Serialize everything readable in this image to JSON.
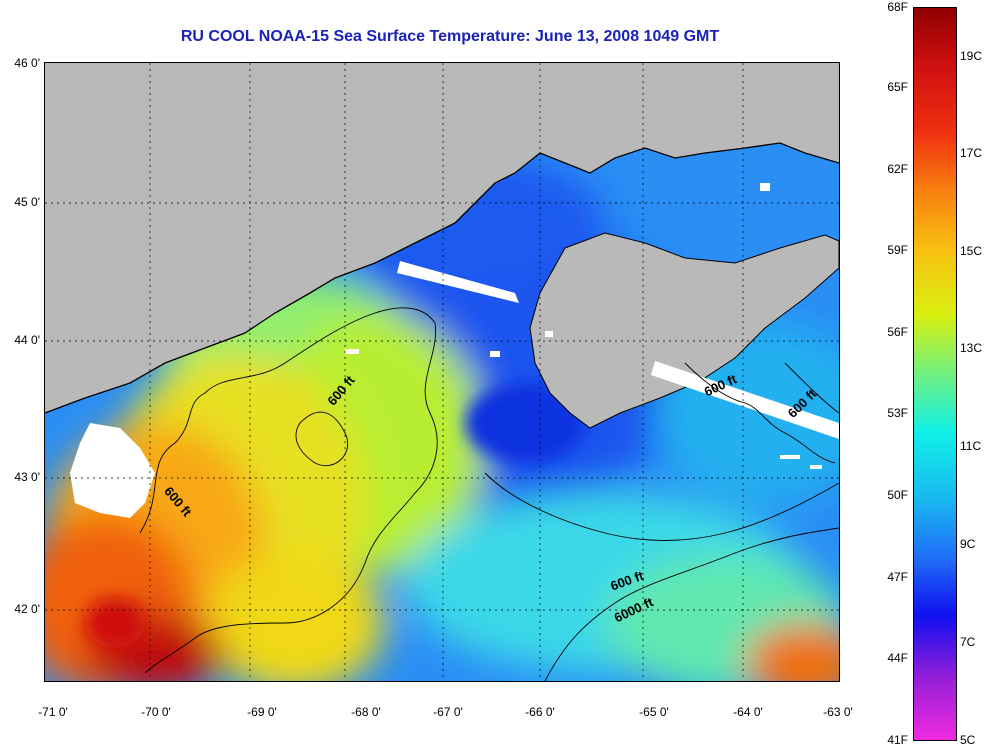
{
  "title": "RU COOL  NOAA-15  Sea Surface Temperature:  June 13, 2008 1049 GMT",
  "lat_labels": [
    "46 0'",
    "45 0'",
    "44 0'",
    "43 0'",
    "42 0'"
  ],
  "lon_labels": [
    "-71 0'",
    "-70 0'",
    "-69 0'",
    "-68 0'",
    "-67 0'",
    "-66 0'",
    "-65 0'",
    "-64 0'",
    "-63 0'"
  ],
  "contour_labels": [
    "600 ft",
    "600 ft",
    "600 ft",
    "600 ft",
    "600 ft",
    "6000 ft"
  ],
  "colorbar": {
    "fahrenheit": [
      "68F",
      "65F",
      "62F",
      "59F",
      "56F",
      "53F",
      "50F",
      "47F",
      "44F",
      "41F"
    ],
    "celsius": [
      "19C",
      "17C",
      "15C",
      "13C",
      "11C",
      "9C",
      "7C",
      "5C"
    ],
    "colors": [
      "#f02be0",
      "#9b20d8",
      "#1010f0",
      "#2070f8",
      "#19b8f0",
      "#10f0e8",
      "#70f080",
      "#d8f010",
      "#f8c010",
      "#f88010",
      "#f03010",
      "#d01010",
      "#900000"
    ]
  },
  "map_colors": {
    "land": "#b9b9b9",
    "cloud": "#ffffff",
    "coast": "#000000",
    "grid": "#000000"
  }
}
